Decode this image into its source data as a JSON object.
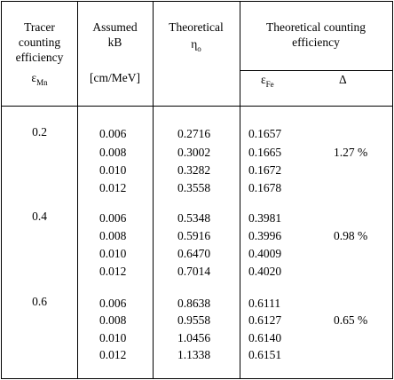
{
  "headers": {
    "col1": [
      "Tracer",
      "counting",
      "efficiency"
    ],
    "col1_symbol": "ε",
    "col1_sub": "Mn",
    "col2": [
      "Assumed",
      "kB"
    ],
    "col2_unit": "[cm/MeV]",
    "col3": "Theoretical",
    "col3_symbol": "η",
    "col3_sub": "o",
    "col4": [
      "Theoretical counting",
      "efficiency"
    ],
    "col4a_symbol": "ε",
    "col4a_sub": "Fe",
    "col4b": "Δ"
  },
  "groups": [
    {
      "tracer": "0.2",
      "delta": "1.27 %",
      "rows": [
        {
          "kb": "0.006",
          "eta": "0.2716",
          "eps": "0.1657"
        },
        {
          "kb": "0.008",
          "eta": "0.3002",
          "eps": "0.1665"
        },
        {
          "kb": "0.010",
          "eta": "0.3282",
          "eps": "0.1672"
        },
        {
          "kb": "0.012",
          "eta": "0.3558",
          "eps": "0.1678"
        }
      ]
    },
    {
      "tracer": "0.4",
      "delta": "0.98 %",
      "rows": [
        {
          "kb": "0.006",
          "eta": "0.5348",
          "eps": "0.3981"
        },
        {
          "kb": "0.008",
          "eta": "0.5916",
          "eps": "0.3996"
        },
        {
          "kb": "0.010",
          "eta": "0.6470",
          "eps": "0.4009"
        },
        {
          "kb": "0.012",
          "eta": "0.7014",
          "eps": "0.4020"
        }
      ]
    },
    {
      "tracer": "0.6",
      "delta": "0.65 %",
      "rows": [
        {
          "kb": "0.006",
          "eta": "0.8638",
          "eps": "0.6111"
        },
        {
          "kb": "0.008",
          "eta": "0.9558",
          "eps": "0.6127"
        },
        {
          "kb": "0.010",
          "eta": "1.0456",
          "eps": "0.6140"
        },
        {
          "kb": "0.012",
          "eta": "1.1338",
          "eps": "0.6151"
        }
      ]
    }
  ]
}
